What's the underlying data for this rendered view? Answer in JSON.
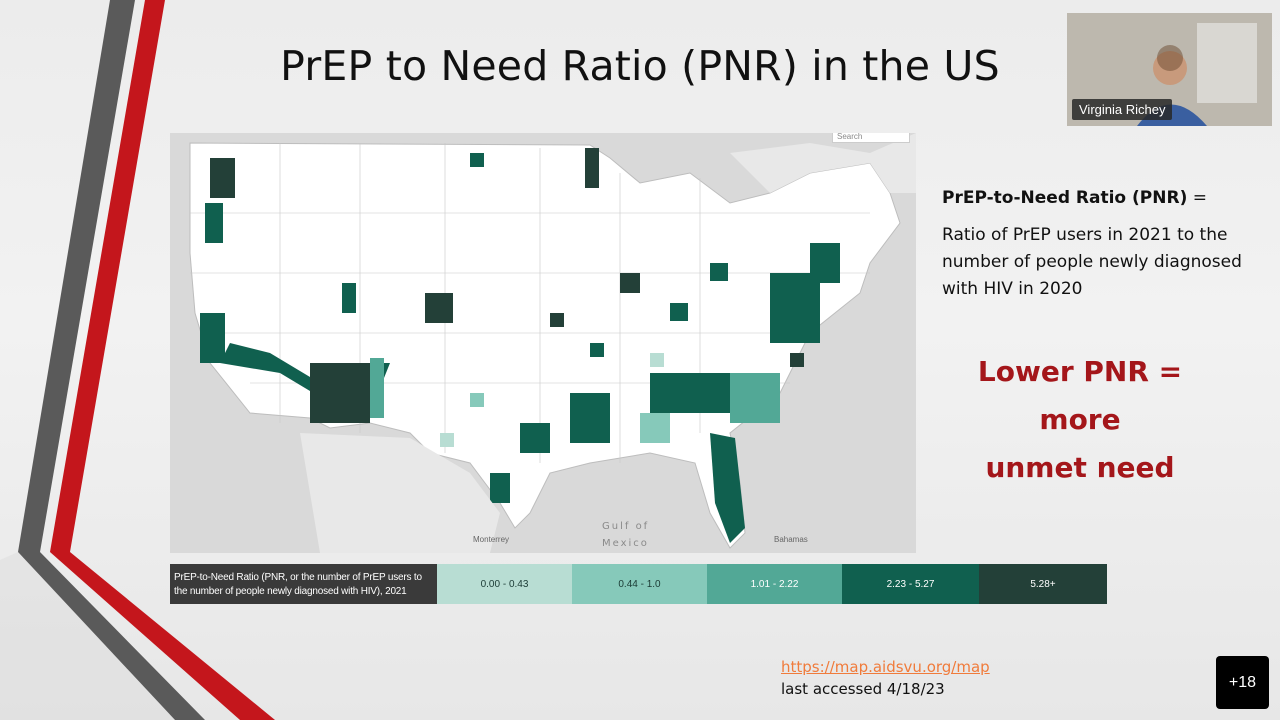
{
  "slide": {
    "title": "PrEP to Need Ratio (PNR) in the US",
    "definition_term": "PrEP-to-Need Ratio (PNR)",
    "definition_eq": "=",
    "definition_text": "Ratio of PrEP users in 2021 to the number of people newly diagnosed with HIV in 2020",
    "emphasis_lines": [
      "Lower PNR =",
      "more",
      "unmet need"
    ],
    "source_url": "https://map.aidsvu.org/map",
    "source_note": "last accessed 4/18/23"
  },
  "map": {
    "search_label": "Search",
    "ocean_label_1": "Gulf of",
    "ocean_label_2": "Mexico",
    "city_monterrey": "Monterrey",
    "city_bahamas": "Bahamas"
  },
  "legend": {
    "title": "PrEP-to-Need Ratio (PNR, or the number of PrEP users to the number of people newly diagnosed with HIV), 2021",
    "bins": [
      {
        "label": "0.00 - 0.43",
        "color": "#b8ddd3",
        "text_color": "#1b3b35"
      },
      {
        "label": "0.44 - 1.0",
        "color": "#86c9ba",
        "text_color": "#1b3b35"
      },
      {
        "label": "1.01 - 2.22",
        "color": "#52a896",
        "text_color": "#ffffff"
      },
      {
        "label": "2.23 - 5.27",
        "color": "#10604f",
        "text_color": "#ffffff"
      },
      {
        "label": "5.28+",
        "color": "#234038",
        "text_color": "#ffffff"
      }
    ]
  },
  "meeting": {
    "participant_name": "Virginia Richey",
    "more_participants": "+18"
  },
  "colors": {
    "accent_red": "#a4161a",
    "deco_red": "#c4161c",
    "deco_gray": "#5a5a5a",
    "link_orange": "#f07b3b"
  }
}
